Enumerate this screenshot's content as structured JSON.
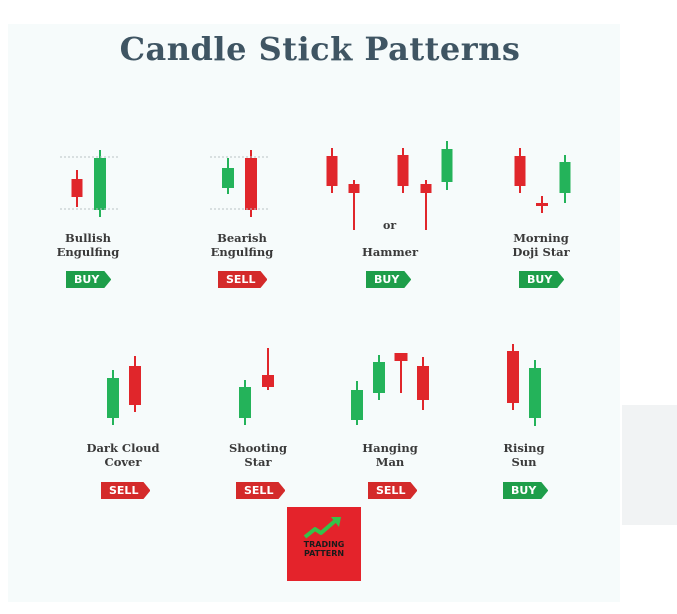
{
  "title": "Candle Stick Patterns",
  "colors": {
    "bull": "#24b35a",
    "bear": "#e0262b",
    "buy": "#1e9e4a",
    "sell": "#d42a2a",
    "title": "#3f5563"
  },
  "patterns": [
    {
      "label_line1": "Bullish",
      "label_line2": "Engulfing",
      "signal": "BUY"
    },
    {
      "label_line1": "Bearish",
      "label_line2": "Engulfing",
      "signal": "SELL"
    },
    {
      "label_line1": "Hammer",
      "label_line2": "",
      "signal": "BUY",
      "connector": "or"
    },
    {
      "label_line1": "Morning",
      "label_line2": "Doji Star",
      "signal": "BUY"
    },
    {
      "label_line1": "Dark Cloud",
      "label_line2": "Cover",
      "signal": "SELL"
    },
    {
      "label_line1": "Shooting",
      "label_line2": "Star",
      "signal": "SELL"
    },
    {
      "label_line1": "Hanging",
      "label_line2": "Man",
      "signal": "SELL"
    },
    {
      "label_line1": "Rising",
      "label_line2": "Sun",
      "signal": "BUY"
    }
  ],
  "logo": {
    "line1": "TRADING",
    "line2": "PATTERN",
    "icon": "trend-arrow-icon"
  }
}
